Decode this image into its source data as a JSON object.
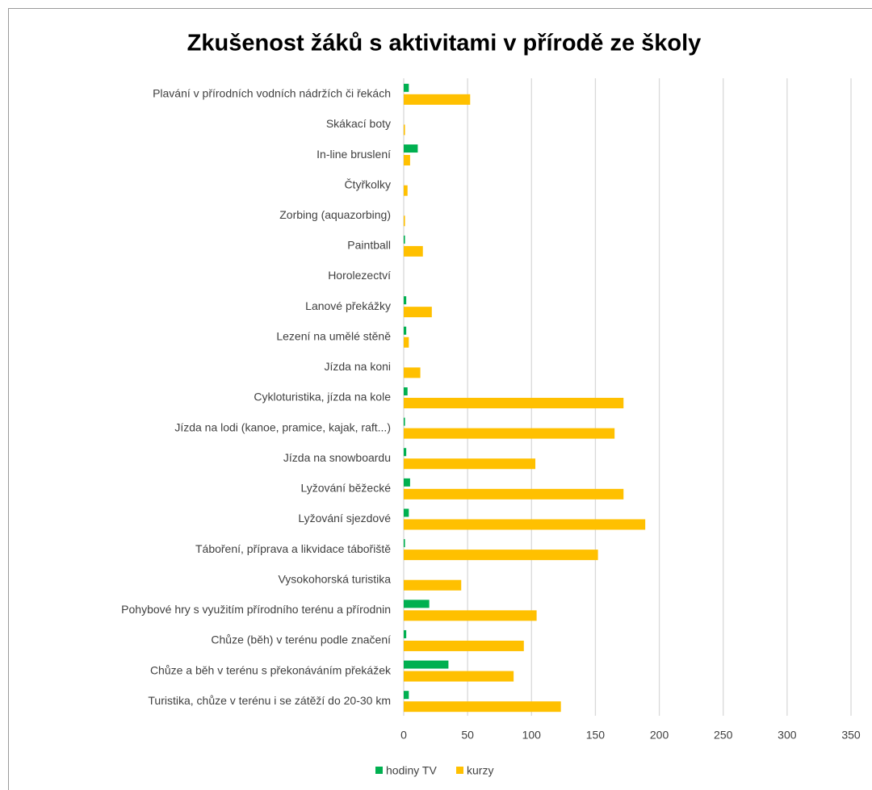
{
  "chart_data": {
    "type": "barh",
    "title": "Zkušenost žáků s aktivitami v přírodě ze školy",
    "categories": [
      "Plavání v přírodních vodních nádržích či řekách",
      "Skákací boty",
      "In-line bruslení",
      "Čtyřkolky",
      "Zorbing (aquazorbing)",
      "Paintball",
      "Horolezectví",
      "Lanové překážky",
      "Lezení na umělé stěně",
      "Jízda na koni",
      "Cykloturistika, jízda na kole",
      "Jízda na lodi (kanoe, pramice, kajak, raft...)",
      "Jízda na snowboardu",
      "Lyžování běžecké",
      "Lyžování sjezdové",
      "Táboření, příprava a likvidace tábořiště",
      "Vysokohorská turistika",
      "Pohybové hry s využitím přírodního terénu a přírodnin",
      "Chůze (běh) v terénu podle značení",
      "Chůze a běh v terénu s překonáváním překážek",
      "Turistika, chůze v terénu i se zátěží do 20-30 km"
    ],
    "series": [
      {
        "name": "hodiny TV",
        "color": "#00b050",
        "values": [
          4,
          0,
          11,
          0,
          0,
          1,
          0,
          2,
          2,
          0,
          3,
          1,
          2,
          5,
          4,
          1,
          0,
          20,
          2,
          35,
          4
        ]
      },
      {
        "name": "kurzy",
        "color": "#ffc000",
        "values": [
          52,
          1,
          5,
          3,
          1,
          15,
          0,
          22,
          4,
          13,
          172,
          165,
          103,
          172,
          189,
          152,
          45,
          104,
          94,
          86,
          123
        ]
      }
    ],
    "xlim": [
      0,
      350
    ],
    "xticks": [
      0,
      50,
      100,
      150,
      200,
      250,
      300,
      350
    ],
    "grid": true,
    "legend": "bottom"
  }
}
